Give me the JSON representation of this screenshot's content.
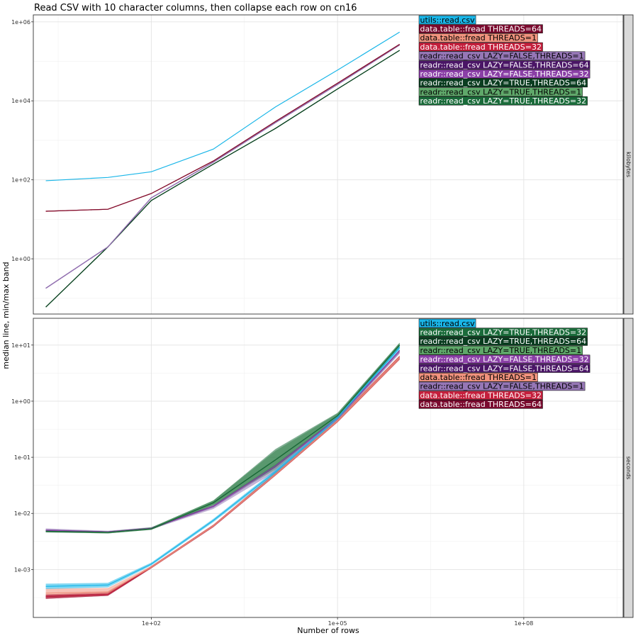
{
  "chart_data": {
    "type": "line",
    "title": "Read CSV with 10 character columns, then collapse each row on cn16",
    "xlabel": "Number of rows",
    "ylabel": "median line, min/max band",
    "xscale": "log10",
    "yscale": "log10",
    "x_ticks": [
      "1e+02",
      "1e+05",
      "1e+08"
    ],
    "grid": true,
    "panels": [
      {
        "strip": "kilobytes",
        "y_ticks": [
          "1e+00",
          "1e+02",
          "1e+04",
          "1e+06"
        ],
        "ylim": [
          0.04,
          1500000
        ],
        "labels_order": [
          "utils::read.csv",
          "data.table::fread THREADS=64",
          "data.table::fread THREADS=1",
          "data.table::fread THREADS=32",
          "readr::read_csv LAZY=FALSE,THREADS=1",
          "readr::read_csv LAZY=FALSE,THREADS=64",
          "readr::read_csv LAZY=FALSE,THREADS=32",
          "readr::read_csv LAZY=TRUE,THREADS=64",
          "readr::read_csv LAZY=TRUE,THREADS=1",
          "readr::read_csv LAZY=TRUE,THREADS=32"
        ],
        "series": [
          {
            "name": "utils::read.csv",
            "x": [
              2,
              20,
              100,
              1000,
              10000,
              100000,
              1000000
            ],
            "y": [
              95,
              115,
              160,
              600,
              7000,
              60000,
              550000
            ]
          },
          {
            "name": "data.table::fread THREADS=64",
            "x": [
              2,
              20,
              100,
              1000,
              10000,
              100000,
              1000000
            ],
            "y": [
              16,
              18,
              45,
              300,
              3000,
              28000,
              270000
            ]
          },
          {
            "name": "data.table::fread THREADS=1",
            "x": [
              2,
              20,
              100,
              1000,
              10000,
              100000,
              1000000
            ],
            "y": [
              16,
              18,
              45,
              300,
              3000,
              28000,
              270000
            ]
          },
          {
            "name": "data.table::fread THREADS=32",
            "x": [
              2,
              20,
              100,
              1000,
              10000,
              100000,
              1000000
            ],
            "y": [
              16,
              18,
              45,
              300,
              3000,
              28000,
              270000
            ]
          },
          {
            "name": "readr::read_csv LAZY=FALSE,THREADS=1",
            "x": [
              2,
              20,
              100,
              1000,
              10000,
              100000,
              1000000
            ],
            "y": [
              0.18,
              2,
              35,
              280,
              2800,
              26000,
              260000
            ]
          },
          {
            "name": "readr::read_csv LAZY=FALSE,THREADS=64",
            "x": [
              2,
              20,
              100,
              1000,
              10000,
              100000,
              1000000
            ],
            "y": [
              0.18,
              2,
              35,
              280,
              2800,
              26000,
              260000
            ]
          },
          {
            "name": "readr::read_csv LAZY=FALSE,THREADS=32",
            "x": [
              2,
              20,
              100,
              1000,
              10000,
              100000,
              1000000
            ],
            "y": [
              0.18,
              2,
              35,
              280,
              2800,
              26000,
              260000
            ]
          },
          {
            "name": "readr::read_csv LAZY=TRUE,THREADS=64",
            "x": [
              2,
              20,
              100,
              1000,
              10000,
              100000,
              1000000
            ],
            "y": [
              0.06,
              2,
              30,
              250,
              2000,
              20000,
              190000
            ]
          },
          {
            "name": "readr::read_csv LAZY=TRUE,THREADS=1",
            "x": [
              2,
              20,
              100,
              1000,
              10000,
              100000,
              1000000
            ],
            "y": [
              0.06,
              2,
              30,
              250,
              2000,
              20000,
              190000
            ]
          },
          {
            "name": "readr::read_csv LAZY=TRUE,THREADS=32",
            "x": [
              2,
              20,
              100,
              1000,
              10000,
              100000,
              1000000
            ],
            "y": [
              0.06,
              2,
              30,
              250,
              2000,
              20000,
              190000
            ]
          }
        ]
      },
      {
        "strip": "seconds",
        "y_ticks": [
          "1e-03",
          "1e-02",
          "1e-01",
          "1e+00",
          "1e+01"
        ],
        "ylim": [
          0.00014,
          30
        ],
        "labels_order": [
          "utils::read.csv",
          "readr::read_csv LAZY=TRUE,THREADS=32",
          "readr::read_csv LAZY=TRUE,THREADS=64",
          "readr::read_csv LAZY=TRUE,THREADS=1",
          "readr::read_csv LAZY=FALSE,THREADS=32",
          "readr::read_csv LAZY=FALSE,THREADS=64",
          "data.table::fread THREADS=1",
          "readr::read_csv LAZY=FALSE,THREADS=1",
          "data.table::fread THREADS=32",
          "data.table::fread THREADS=64"
        ],
        "series": [
          {
            "name": "utils::read.csv",
            "x": [
              2,
              20,
              100,
              1000,
              10000,
              100000,
              1000000
            ],
            "y": [
              0.0005,
              0.00053,
              0.00125,
              0.0075,
              0.055,
              0.5,
              9
            ],
            "min": [
              0.00045,
              0.00048,
              0.00118,
              0.007,
              0.05,
              0.45,
              8
            ],
            "max": [
              0.00056,
              0.00058,
              0.00133,
              0.008,
              0.06,
              0.55,
              10
            ]
          },
          {
            "name": "readr::read_csv LAZY=TRUE,THREADS=32",
            "x": [
              2,
              20,
              100,
              1000,
              10000,
              100000,
              1000000
            ],
            "y": [
              0.0048,
              0.0046,
              0.0053,
              0.0155,
              0.09,
              0.55,
              10
            ],
            "min": [
              0.0046,
              0.0044,
              0.0051,
              0.014,
              0.065,
              0.5,
              9
            ],
            "max": [
              0.0051,
              0.0048,
              0.0056,
              0.017,
              0.14,
              0.62,
              11
            ]
          },
          {
            "name": "readr::read_csv LAZY=TRUE,THREADS=64",
            "x": [
              2,
              20,
              100,
              1000,
              10000,
              100000,
              1000000
            ],
            "y": [
              0.0048,
              0.0046,
              0.0053,
              0.0155,
              0.09,
              0.55,
              10
            ]
          },
          {
            "name": "readr::read_csv LAZY=TRUE,THREADS=1",
            "x": [
              2,
              20,
              100,
              1000,
              10000,
              100000,
              1000000
            ],
            "y": [
              0.0048,
              0.0046,
              0.0053,
              0.0155,
              0.09,
              0.55,
              10
            ],
            "min": [
              0.0046,
              0.0044,
              0.0051,
              0.014,
              0.06,
              0.5,
              9
            ],
            "max": [
              0.0051,
              0.0048,
              0.0056,
              0.017,
              0.13,
              0.6,
              11
            ]
          },
          {
            "name": "readr::read_csv LAZY=FALSE,THREADS=32",
            "x": [
              2,
              20,
              100,
              1000,
              10000,
              100000,
              1000000
            ],
            "y": [
              0.005,
              0.0047,
              0.0054,
              0.0135,
              0.07,
              0.5,
              8
            ]
          },
          {
            "name": "readr::read_csv LAZY=FALSE,THREADS=64",
            "x": [
              2,
              20,
              100,
              1000,
              10000,
              100000,
              1000000
            ],
            "y": [
              0.005,
              0.0047,
              0.0054,
              0.0135,
              0.07,
              0.5,
              8
            ]
          },
          {
            "name": "data.table::fread THREADS=1",
            "x": [
              2,
              20,
              100,
              1000,
              10000,
              100000,
              1000000
            ],
            "y": [
              0.00038,
              0.0004,
              0.0011,
              0.006,
              0.05,
              0.45,
              6
            ],
            "min": [
              0.00035,
              0.00037,
              0.00105,
              0.0058,
              0.047,
              0.42,
              5.5
            ],
            "max": [
              0.00046,
              0.00047,
              0.00115,
              0.0063,
              0.055,
              0.5,
              6.5
            ]
          },
          {
            "name": "readr::read_csv LAZY=FALSE,THREADS=1",
            "x": [
              2,
              20,
              100,
              1000,
              10000,
              100000,
              1000000
            ],
            "y": [
              0.0051,
              0.0047,
              0.0054,
              0.013,
              0.065,
              0.48,
              7.5
            ],
            "min": [
              0.0049,
              0.0045,
              0.0052,
              0.012,
              0.055,
              0.45,
              7
            ],
            "max": [
              0.0054,
              0.0049,
              0.0057,
              0.014,
              0.075,
              0.52,
              8
            ]
          },
          {
            "name": "data.table::fread THREADS=32",
            "x": [
              2,
              20,
              100,
              1000,
              10000,
              100000,
              1000000
            ],
            "y": [
              0.00033,
              0.00036,
              0.0011,
              0.006,
              0.05,
              0.45,
              6
            ],
            "min": [
              0.0003,
              0.00034,
              0.00105,
              0.0057,
              0.047,
              0.42,
              5.5
            ],
            "max": [
              0.00036,
              0.00039,
              0.00115,
              0.0063,
              0.053,
              0.48,
              6.5
            ]
          },
          {
            "name": "data.table::fread THREADS=64",
            "x": [
              2,
              20,
              100,
              1000,
              10000,
              100000,
              1000000
            ],
            "y": [
              0.00033,
              0.00036,
              0.0011,
              0.006,
              0.05,
              0.45,
              6
            ],
            "min": [
              0.0003,
              0.00034,
              0.00105,
              0.0057,
              0.047,
              0.42,
              5.5
            ],
            "max": [
              0.00036,
              0.00039,
              0.00115,
              0.0063,
              0.053,
              0.48,
              6.5
            ]
          }
        ]
      }
    ],
    "colors": {
      "utils::read.csv": "#1ab6e8",
      "data.table::fread THREADS=64": "#7a0a2e",
      "data.table::fread THREADS=1": "#f0927d",
      "data.table::fread THREADS=32": "#c41f3c",
      "readr::read_csv LAZY=FALSE,THREADS=1": "#9677b6",
      "readr::read_csv LAZY=FALSE,THREADS=64": "#4a1566",
      "readr::read_csv LAZY=FALSE,THREADS=32": "#8a3fa6",
      "readr::read_csv LAZY=TRUE,THREADS=64": "#0a3d20",
      "readr::read_csv LAZY=TRUE,THREADS=1": "#5fa86a",
      "readr::read_csv LAZY=TRUE,THREADS=32": "#1a6b3a"
    },
    "label_text_colors": {
      "utils::read.csv": "#000000",
      "data.table::fread THREADS=64": "#ffffff",
      "data.table::fread THREADS=1": "#000000",
      "data.table::fread THREADS=32": "#ffffff",
      "readr::read_csv LAZY=FALSE,THREADS=1": "#000000",
      "readr::read_csv LAZY=FALSE,THREADS=64": "#ffffff",
      "readr::read_csv LAZY=FALSE,THREADS=32": "#ffffff",
      "readr::read_csv LAZY=TRUE,THREADS=64": "#ffffff",
      "readr::read_csv LAZY=TRUE,THREADS=1": "#000000",
      "readr::read_csv LAZY=TRUE,THREADS=32": "#ffffff"
    }
  }
}
